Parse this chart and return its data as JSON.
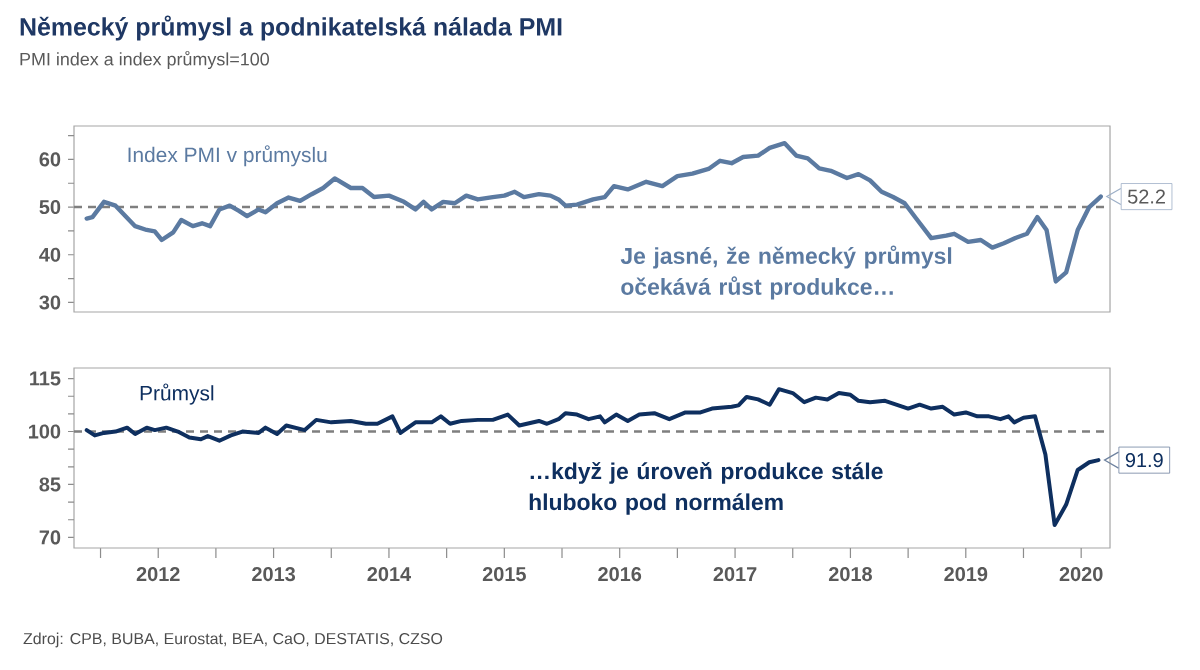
{
  "chart_data": [
    {
      "type": "line",
      "title": "Německý průmysl a podnikatelská nálada PMI",
      "subtitle": "PMI index a index průmysl=100",
      "xlim": [
        2011.77,
        2020.75
      ],
      "ylim": [
        28,
        67
      ],
      "yticks": [
        30,
        40,
        50,
        60,
        {
          "value": 35,
          "label": null
        },
        {
          "value": 45,
          "label": null
        },
        {
          "value": 55,
          "label": null
        },
        {
          "value": 65,
          "label": null
        }
      ],
      "tick_labels": "y",
      "ref_lines": [
        {
          "axis": "y",
          "value": 50,
          "color": "#7f7f7f",
          "line_style": "dashed"
        }
      ],
      "annotations": [
        "Je jasné, že německý průmysl očekává růst produkce…"
      ],
      "series": [
        {
          "name": "Index PMI v průmyslu",
          "color": "#5b7aa1",
          "x": [
            2011.88,
            2011.93,
            2012.03,
            2012.13,
            2012.3,
            2012.4,
            2012.47,
            2012.53,
            2012.63,
            2012.7,
            2012.8,
            2012.88,
            2012.95,
            2013.03,
            2013.12,
            2013.2,
            2013.27,
            2013.37,
            2013.43,
            2013.53,
            2013.63,
            2013.73,
            2013.83,
            2013.93,
            2014.03,
            2014.17,
            2014.27,
            2014.37,
            2014.5,
            2014.63,
            2014.73,
            2014.8,
            2014.87,
            2014.97,
            2015.07,
            2015.17,
            2015.27,
            2015.4,
            2015.5,
            2015.59,
            2015.67,
            2015.8,
            2015.9,
            2015.97,
            2016.03,
            2016.13,
            2016.27,
            2016.37,
            2016.45,
            2016.57,
            2016.73,
            2016.87,
            2017,
            2017.13,
            2017.27,
            2017.37,
            2017.47,
            2017.57,
            2017.7,
            2017.8,
            2017.93,
            2018.03,
            2018.13,
            2018.23,
            2018.33,
            2018.47,
            2018.57,
            2018.67,
            2018.77,
            2018.87,
            2018.97,
            2019.07,
            2019.2,
            2019.33,
            2019.4,
            2019.52,
            2019.63,
            2019.73,
            2019.83,
            2019.93,
            2020.03,
            2020.12,
            2020.2,
            2020.28,
            2020.37,
            2020.47,
            2020.57,
            2020.67
          ],
          "values": [
            47.6,
            47.9,
            51.1,
            50.3,
            46,
            45.2,
            44.9,
            43.1,
            44.7,
            47.3,
            46,
            46.6,
            46,
            49.5,
            50.3,
            49.2,
            48.1,
            49.5,
            48.9,
            50.8,
            52,
            51.3,
            52.7,
            54,
            56,
            54,
            54,
            52.1,
            52.4,
            51.1,
            49.5,
            51.1,
            49.5,
            51.1,
            50.8,
            52.4,
            51.6,
            52.1,
            52.4,
            53.2,
            52.1,
            52.7,
            52.4,
            51.6,
            50.3,
            50.5,
            51.6,
            52.1,
            54.4,
            53.7,
            55.3,
            54.4,
            56.5,
            57,
            58,
            59.7,
            59.2,
            60.5,
            60.8,
            62.4,
            63.4,
            60.8,
            60.2,
            58.1,
            57.6,
            56.1,
            56.9,
            55.6,
            53.2,
            52.1,
            50.8,
            47.6,
            43.5,
            44,
            44.4,
            42.7,
            43.1,
            41.5,
            42.4,
            43.5,
            44.4,
            47.9,
            45.2,
            34.4,
            36.3,
            45.2,
            50,
            52.2
          ],
          "value_labels": [
            null,
            null,
            null,
            null,
            null,
            null,
            null,
            null,
            null,
            null,
            null,
            null,
            null,
            null,
            null,
            null,
            null,
            null,
            null,
            null,
            null,
            null,
            null,
            null,
            null,
            null,
            null,
            null,
            null,
            null,
            null,
            null,
            null,
            null,
            null,
            null,
            null,
            null,
            null,
            null,
            null,
            null,
            null,
            null,
            null,
            null,
            null,
            null,
            null,
            null,
            null,
            null,
            null,
            null,
            null,
            null,
            null,
            null,
            null,
            null,
            null,
            null,
            null,
            null,
            null,
            null,
            null,
            null,
            null,
            null,
            null,
            null,
            null,
            null,
            null,
            null,
            null,
            null,
            null,
            null,
            null,
            null,
            null,
            null,
            null,
            null,
            null,
            "52.2"
          ]
        }
      ]
    },
    {
      "type": "line",
      "xlim": [
        2011.77,
        2020.75
      ],
      "xticks": [
        {
          "value": 2012.5,
          "label": "2012"
        },
        {
          "value": 2013.5,
          "label": "2013"
        },
        {
          "value": 2014.5,
          "label": "2014"
        },
        {
          "value": 2015.5,
          "label": "2015"
        },
        {
          "value": 2016.5,
          "label": "2016"
        },
        {
          "value": 2017.5,
          "label": "2017"
        },
        {
          "value": 2018.5,
          "label": "2018"
        },
        {
          "value": 2019.5,
          "label": "2019"
        },
        {
          "value": 2020.5,
          "label": "2020"
        },
        {
          "value": 2012,
          "label": null
        },
        {
          "value": 2013,
          "label": null
        },
        {
          "value": 2014,
          "label": null
        },
        {
          "value": 2015,
          "label": null
        },
        {
          "value": 2016,
          "label": null
        },
        {
          "value": 2017,
          "label": null
        },
        {
          "value": 2018,
          "label": null
        },
        {
          "value": 2019,
          "label": null
        },
        {
          "value": 2020,
          "label": null
        }
      ],
      "ylim": [
        67,
        118
      ],
      "yticks": [
        70,
        85,
        100,
        115,
        {
          "value": 75,
          "label": null
        },
        {
          "value": 80,
          "label": null
        },
        {
          "value": 90,
          "label": null
        },
        {
          "value": 95,
          "label": null
        },
        {
          "value": 105,
          "label": null
        },
        {
          "value": 110,
          "label": null
        }
      ],
      "ref_lines": [
        {
          "axis": "y",
          "value": 100,
          "color": "#7f7f7f",
          "line_style": "dashed"
        }
      ],
      "annotations": [
        "…když je úroveň produkce stále hluboko pod normálem",
        "Zdroj: CPB, BUBA, Eurostat, BEA, CaO, DESTATIS, CZSO"
      ],
      "series": [
        {
          "name": "Průmysl",
          "color": "#0e2f5f",
          "x": [
            2011.88,
            2011.95,
            2012.03,
            2012.13,
            2012.23,
            2012.3,
            2012.4,
            2012.47,
            2012.57,
            2012.67,
            2012.77,
            2012.87,
            2012.93,
            2013.03,
            2013.13,
            2013.23,
            2013.37,
            2013.43,
            2013.53,
            2013.61,
            2013.77,
            2013.87,
            2014,
            2014.17,
            2014.3,
            2014.4,
            2014.53,
            2014.6,
            2014.73,
            2014.87,
            2014.95,
            2015.03,
            2015.13,
            2015.27,
            2015.4,
            2015.53,
            2015.63,
            2015.8,
            2015.87,
            2015.97,
            2016.03,
            2016.13,
            2016.23,
            2016.33,
            2016.37,
            2016.47,
            2016.57,
            2016.67,
            2016.8,
            2016.93,
            2017.07,
            2017.2,
            2017.3,
            2017.47,
            2017.53,
            2017.6,
            2017.7,
            2017.8,
            2017.88,
            2018,
            2018.1,
            2018.2,
            2018.3,
            2018.4,
            2018.5,
            2018.57,
            2018.67,
            2018.8,
            2018.9,
            2019,
            2019.1,
            2019.2,
            2019.3,
            2019.4,
            2019.5,
            2019.6,
            2019.7,
            2019.8,
            2019.87,
            2019.92,
            2020,
            2020.1,
            2020.19,
            2020.27,
            2020.37,
            2020.47,
            2020.57,
            2020.65
          ],
          "values": [
            100.4,
            98.9,
            99.6,
            100,
            101.1,
            99.3,
            101.1,
            100.4,
            101.1,
            100,
            98.3,
            97.8,
            98.7,
            97.4,
            98.9,
            100,
            99.6,
            101.1,
            99.3,
            101.7,
            100.4,
            103.3,
            102.6,
            103,
            102.2,
            102.2,
            104.3,
            99.6,
            102.6,
            102.6,
            104.3,
            102.2,
            103,
            103.3,
            103.3,
            104.8,
            101.7,
            103,
            102.2,
            103.5,
            105.2,
            104.8,
            103.5,
            104.3,
            102.6,
            104.8,
            103,
            104.8,
            105.2,
            103.5,
            105.4,
            105.4,
            106.5,
            107,
            107.4,
            109.8,
            109.1,
            107.6,
            112,
            110.9,
            108.3,
            109.6,
            109.1,
            110.9,
            110.4,
            108.7,
            108.3,
            108.7,
            107.6,
            106.5,
            107.6,
            106.5,
            107,
            104.8,
            105.4,
            104.3,
            104.3,
            103.5,
            104.3,
            102.6,
            103.9,
            104.3,
            93.5,
            73.5,
            79.3,
            89.1,
            91.3,
            91.9
          ],
          "value_labels": [
            null,
            null,
            null,
            null,
            null,
            null,
            null,
            null,
            null,
            null,
            null,
            null,
            null,
            null,
            null,
            null,
            null,
            null,
            null,
            null,
            null,
            null,
            null,
            null,
            null,
            null,
            null,
            null,
            null,
            null,
            null,
            null,
            null,
            null,
            null,
            null,
            null,
            null,
            null,
            null,
            null,
            null,
            null,
            null,
            null,
            null,
            null,
            null,
            null,
            null,
            null,
            null,
            null,
            null,
            null,
            null,
            null,
            null,
            null,
            null,
            null,
            null,
            null,
            null,
            null,
            null,
            null,
            null,
            null,
            null,
            null,
            null,
            null,
            null,
            null,
            null,
            null,
            null,
            null,
            null,
            null,
            null,
            null,
            null,
            null,
            null,
            null,
            "91.9"
          ]
        }
      ]
    }
  ]
}
